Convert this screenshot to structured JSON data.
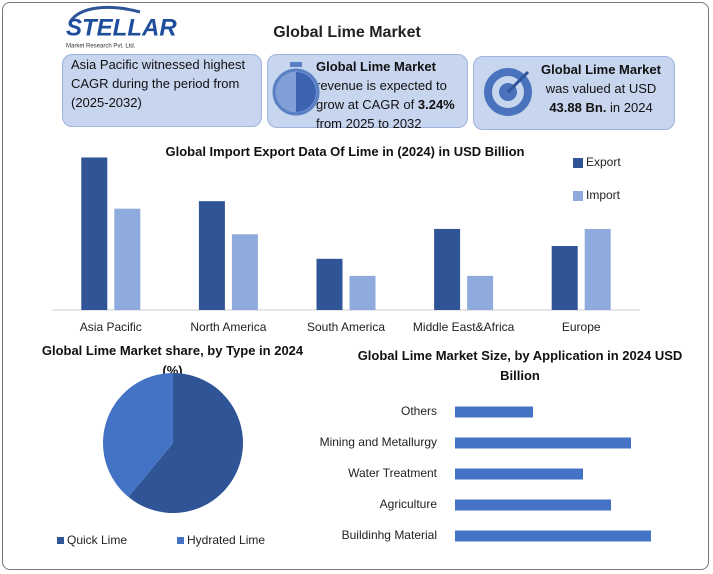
{
  "header": {
    "logo": "STELLAR",
    "logo_tagline": "Market Research Pvt. Ltd.",
    "title": "Global Lime Market"
  },
  "stats": [
    {
      "text": "Asia Pacific witnessed highest CAGR during the period from (2025-2032)"
    },
    {
      "bold1": "Global Lime Market",
      "text1": " revenue is expected to grow at CAGR of ",
      "bold2": "3.24%",
      "text2": " from 2025 to 2032"
    },
    {
      "bold1": "Global Lime Market",
      "text1": " was valued at USD ",
      "bold2": "43.88 Bn.",
      "text2": " in 2024"
    }
  ],
  "chart_data": [
    {
      "type": "bar",
      "title": "Global Import Export Data Of Lime in (2024) in USD Billion",
      "categories": [
        "Asia Pacific",
        "North America",
        "South America",
        "Middle East&Africa",
        "Europe"
      ],
      "series": [
        {
          "name": "Export",
          "color": "#2f5597",
          "values": [
            14.3,
            10.2,
            4.8,
            7.6,
            6.0
          ]
        },
        {
          "name": "Import",
          "color": "#8faadc",
          "values": [
            9.5,
            7.1,
            3.2,
            3.2,
            7.6
          ]
        }
      ],
      "ylim": [
        0,
        15
      ],
      "legend": "right"
    },
    {
      "type": "pie",
      "title": "Global Lime Market share, by Type in 2024 (%)",
      "categories": [
        "Quick Lime",
        "Hydrated Lime"
      ],
      "values": [
        61,
        39
      ],
      "colors": [
        "#2f5597",
        "#4472c4"
      ],
      "legend": "bottom"
    },
    {
      "type": "hbar",
      "title": "Global Lime Market Size, by Application in 2024 USD Billion",
      "categories": [
        "Others",
        "Mining and Metallurgy",
        "Water Treatment",
        "Agriculture",
        "Buildinhg Material"
      ],
      "values": [
        7.8,
        17.6,
        12.8,
        15.6,
        19.6
      ],
      "color": "#4472c4",
      "xlim": [
        0,
        22.5
      ]
    }
  ]
}
